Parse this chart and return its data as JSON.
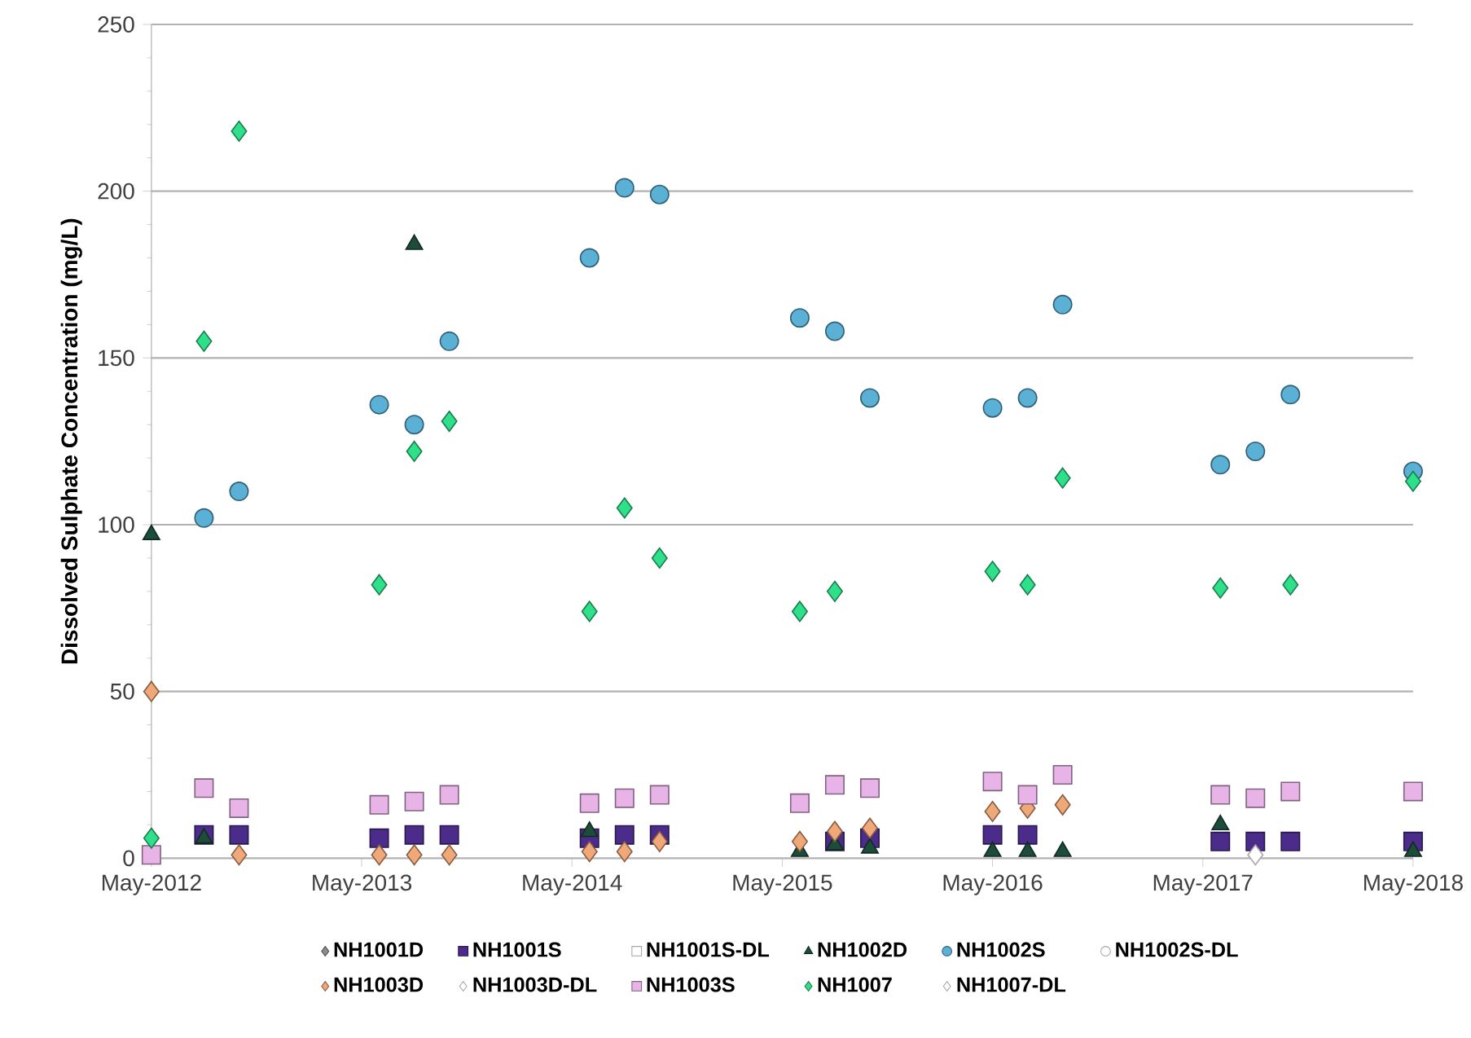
{
  "chart_data": {
    "type": "scatter",
    "ylabel": "Dissolved Sulphate Concentration (mg/L)",
    "xlim": [
      "2012-05",
      "2018-05"
    ],
    "ylim": [
      0,
      250
    ],
    "xticks": [
      {
        "value": "2012-05",
        "label": "May-2012"
      },
      {
        "value": "2013-05",
        "label": "May-2013"
      },
      {
        "value": "2014-05",
        "label": "May-2014"
      },
      {
        "value": "2015-05",
        "label": "May-2015"
      },
      {
        "value": "2016-05",
        "label": "May-2016"
      },
      {
        "value": "2017-05",
        "label": "May-2017"
      },
      {
        "value": "2018-05",
        "label": "May-2018"
      }
    ],
    "yticks": [
      0,
      50,
      100,
      150,
      200,
      250
    ],
    "grid": "y",
    "legend": "bottom",
    "series": [
      {
        "name": "NH1001D",
        "color": "#8c8c8c",
        "marker": "diamond"
      },
      {
        "name": "NH1001S",
        "color": "#4b2c8a",
        "marker": "square",
        "x": [
          "2012-08",
          "2012-10",
          "2013-06",
          "2013-08",
          "2013-10",
          "2014-06",
          "2014-08",
          "2014-10",
          "2015-08",
          "2015-10",
          "2016-05",
          "2016-07",
          "2017-06",
          "2017-08",
          "2017-10",
          "2018-05"
        ],
        "values": [
          7,
          7,
          6,
          7,
          7,
          6,
          7,
          7,
          5,
          6,
          7,
          7,
          5,
          5,
          5,
          5
        ]
      },
      {
        "name": "NH1001S-DL",
        "color": "#ffffff",
        "marker": "square"
      },
      {
        "name": "NH1002D",
        "color": "#1d4d3a",
        "marker": "triangle",
        "x": [
          "2012-05",
          "2012-08",
          "2013-08",
          "2014-06",
          "2015-06",
          "2015-08",
          "2015-10",
          "2016-05",
          "2016-07",
          "2016-09",
          "2017-06",
          "2018-05"
        ],
        "values": [
          97,
          6,
          184,
          8,
          2,
          4,
          3,
          2,
          2,
          2,
          10,
          2
        ]
      },
      {
        "name": "NH1002S",
        "color": "#5bb0d6",
        "marker": "circle",
        "x": [
          "2012-08",
          "2012-10",
          "2013-06",
          "2013-08",
          "2013-10",
          "2014-06",
          "2014-08",
          "2014-10",
          "2015-06",
          "2015-08",
          "2015-10",
          "2016-05",
          "2016-07",
          "2016-09",
          "2017-06",
          "2017-08",
          "2017-10",
          "2018-05"
        ],
        "values": [
          102,
          110,
          136,
          130,
          155,
          180,
          201,
          199,
          162,
          158,
          138,
          135,
          138,
          166,
          118,
          122,
          139,
          116
        ]
      },
      {
        "name": "NH1002S-DL",
        "color": "#ffffff",
        "marker": "circle"
      },
      {
        "name": "NH1003D",
        "color": "#f0a878",
        "marker": "diamond",
        "x": [
          "2012-05",
          "2012-10",
          "2013-06",
          "2013-08",
          "2013-10",
          "2014-06",
          "2014-08",
          "2014-10",
          "2015-06",
          "2015-08",
          "2015-10",
          "2016-05",
          "2016-07",
          "2016-09"
        ],
        "values": [
          50,
          1,
          1,
          1,
          1,
          2,
          2,
          5,
          5,
          8,
          9,
          14,
          15,
          16
        ]
      },
      {
        "name": "NH1003D-DL",
        "color": "#ffffff",
        "marker": "diamond"
      },
      {
        "name": "NH1003S",
        "color": "#e8b4e8",
        "marker": "square",
        "x": [
          "2012-05",
          "2012-08",
          "2012-10",
          "2013-06",
          "2013-08",
          "2013-10",
          "2014-06",
          "2014-08",
          "2014-10",
          "2015-06",
          "2015-08",
          "2015-10",
          "2016-05",
          "2016-07",
          "2016-09",
          "2017-06",
          "2017-08",
          "2017-10",
          "2018-05"
        ],
        "values": [
          1,
          21,
          15,
          16,
          17,
          19,
          16.5,
          18,
          19,
          16.5,
          22,
          21,
          23,
          19,
          25,
          19,
          18,
          20,
          20
        ]
      },
      {
        "name": "NH1007",
        "color": "#2fe08a",
        "marker": "diamond",
        "x": [
          "2012-05",
          "2012-08",
          "2012-10",
          "2013-06",
          "2013-08",
          "2013-10",
          "2014-06",
          "2014-08",
          "2014-10",
          "2015-06",
          "2015-08",
          "2016-05",
          "2016-07",
          "2016-09",
          "2017-06",
          "2017-10",
          "2018-05"
        ],
        "values": [
          6,
          155,
          218,
          82,
          122,
          131,
          74,
          105,
          90,
          74,
          80,
          86,
          82,
          114,
          81,
          82,
          113
        ]
      },
      {
        "name": "NH1007-DL",
        "color": "#ffffff",
        "marker": "diamond",
        "x": [
          "2017-08"
        ],
        "values": [
          1
        ]
      }
    ]
  }
}
